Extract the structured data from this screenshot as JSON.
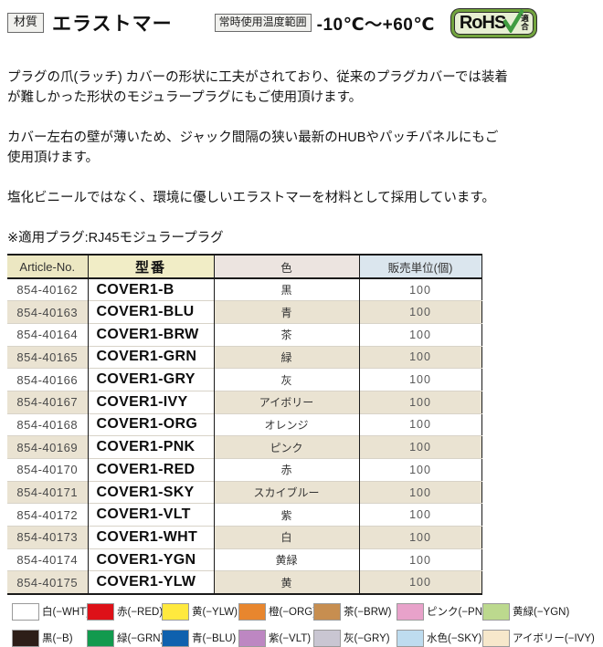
{
  "header": {
    "material_label": "材質",
    "material_value": "エラストマー",
    "temp_label": "常時使用温度範囲",
    "temp_value": "-10℃〜+60℃",
    "rohs": {
      "brand": "RoHS",
      "suffix": "適合"
    }
  },
  "description": {
    "para1": "プラグの爪(ラッチ) カバーの形状に工夫がされており、従来のプラグカバーでは装着\nが難しかった形状のモジュラープラグにもご使用頂けます。",
    "para2": "カバー左右の壁が薄いため、ジャック間隔の狭い最新のHUBやパッチパネルにもご\n使用頂けます。",
    "para3": "塩化ビニールではなく、環境に優しいエラストマーを材料として採用しています。",
    "note": "※適用プラグ:RJ45モジュラープラグ"
  },
  "table": {
    "columns": [
      "Article-No.",
      "型番",
      "色",
      "販売単位(個)"
    ],
    "rows": [
      {
        "article": "854-40162",
        "model": "COVER1-B",
        "color": "黒",
        "unit": "100"
      },
      {
        "article": "854-40163",
        "model": "COVER1-BLU",
        "color": "青",
        "unit": "100"
      },
      {
        "article": "854-40164",
        "model": "COVER1-BRW",
        "color": "茶",
        "unit": "100"
      },
      {
        "article": "854-40165",
        "model": "COVER1-GRN",
        "color": "緑",
        "unit": "100"
      },
      {
        "article": "854-40166",
        "model": "COVER1-GRY",
        "color": "灰",
        "unit": "100"
      },
      {
        "article": "854-40167",
        "model": "COVER1-IVY",
        "color": "アイボリー",
        "unit": "100"
      },
      {
        "article": "854-40168",
        "model": "COVER1-ORG",
        "color": "オレンジ",
        "unit": "100"
      },
      {
        "article": "854-40169",
        "model": "COVER1-PNK",
        "color": "ピンク",
        "unit": "100"
      },
      {
        "article": "854-40170",
        "model": "COVER1-RED",
        "color": "赤",
        "unit": "100"
      },
      {
        "article": "854-40171",
        "model": "COVER1-SKY",
        "color": "スカイブルー",
        "unit": "100"
      },
      {
        "article": "854-40172",
        "model": "COVER1-VLT",
        "color": "紫",
        "unit": "100"
      },
      {
        "article": "854-40173",
        "model": "COVER1-WHT",
        "color": "白",
        "unit": "100"
      },
      {
        "article": "854-40174",
        "model": "COVER1-YGN",
        "color": "黄緑",
        "unit": "100"
      },
      {
        "article": "854-40175",
        "model": "COVER1-YLW",
        "color": "黄",
        "unit": "100"
      }
    ]
  },
  "legend": {
    "rows": [
      [
        {
          "label": "白(−WHT)",
          "color": "#ffffff"
        },
        {
          "label": "赤(−RED)",
          "color": "#dd1118"
        },
        {
          "label": "黄(−YLW)",
          "color": "#ffe93e"
        },
        {
          "label": "橙(−ORG)",
          "color": "#e8862e"
        },
        {
          "label": "茶(−BRW)",
          "color": "#c78e50"
        },
        {
          "label": "ピンク(−PNK)",
          "color": "#e8a2ca"
        },
        {
          "label": "黄緑(−YGN)",
          "color": "#bcd98e"
        }
      ],
      [
        {
          "label": "黒(−B)",
          "color": "#2d1e18"
        },
        {
          "label": "緑(−GRN)",
          "color": "#129a4e"
        },
        {
          "label": "青(−BLU)",
          "color": "#0f61ae"
        },
        {
          "label": "紫(−VLT)",
          "color": "#bd87c2"
        },
        {
          "label": "灰(−GRY)",
          "color": "#c9c6d2"
        },
        {
          "label": "水色(−SKY)",
          "color": "#bedcef"
        },
        {
          "label": "アイボリー(−IVY)",
          "color": "#f7e8cb"
        }
      ]
    ]
  },
  "colors": {
    "rohs_green": "#3f9c40",
    "rohs_border": "#72a43d",
    "table_stripe": "#eae3d2",
    "header_article_bg": "#ece7c2",
    "header_model_bg": "#f1edc6",
    "header_color_bg": "#ece4e0",
    "header_unit_bg": "#dbe6ee"
  }
}
